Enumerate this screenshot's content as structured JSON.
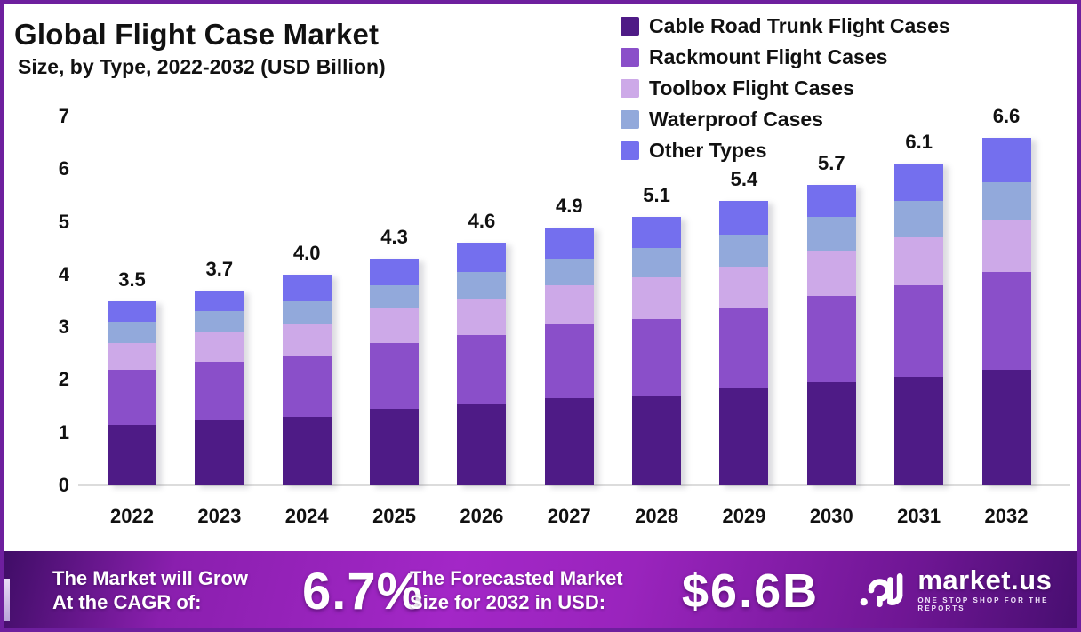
{
  "header": {
    "title": "Global Flight Case Market",
    "subtitle": "Size, by Type, 2022-2032 (USD Billion)"
  },
  "chart_data": {
    "type": "bar",
    "stacked": true,
    "title": "Global Flight Case Market Size, by Type, 2022-2032 (USD Billion)",
    "categories": [
      "2022",
      "2023",
      "2024",
      "2025",
      "2026",
      "2027",
      "2028",
      "2029",
      "2030",
      "2031",
      "2032"
    ],
    "series": [
      {
        "name": "Cable Road Trunk Flight Cases",
        "color": "#4e1b86",
        "values": [
          1.15,
          1.25,
          1.3,
          1.45,
          1.55,
          1.65,
          1.7,
          1.85,
          1.95,
          2.05,
          2.2
        ]
      },
      {
        "name": "Rackmount Flight Cases",
        "color": "#8a4fc9",
        "values": [
          1.05,
          1.1,
          1.15,
          1.25,
          1.3,
          1.4,
          1.45,
          1.5,
          1.65,
          1.75,
          1.85
        ]
      },
      {
        "name": "Toolbox Flight Cases",
        "color": "#cda9e8",
        "values": [
          0.5,
          0.55,
          0.6,
          0.65,
          0.7,
          0.75,
          0.8,
          0.8,
          0.85,
          0.9,
          1.0
        ]
      },
      {
        "name": "Waterproof Cases",
        "color": "#92a9db",
        "values": [
          0.4,
          0.4,
          0.45,
          0.45,
          0.5,
          0.5,
          0.55,
          0.6,
          0.65,
          0.7,
          0.7
        ]
      },
      {
        "name": "Other Types",
        "color": "#746fee",
        "values": [
          0.4,
          0.4,
          0.5,
          0.5,
          0.55,
          0.6,
          0.6,
          0.65,
          0.6,
          0.7,
          0.85
        ]
      }
    ],
    "totals_labels": [
      "3.5",
      "3.7",
      "4.0",
      "4.3",
      "4.6",
      "4.9",
      "5.1",
      "5.4",
      "5.7",
      "6.1",
      "6.6"
    ],
    "xlabel": "",
    "ylabel": "",
    "ylim": [
      0,
      7
    ],
    "yticks": [
      0,
      1,
      2,
      3,
      4,
      5,
      6,
      7
    ],
    "grid": false,
    "legend_position": "top-right"
  },
  "footer": {
    "cagr_label_line1": "The Market will Grow",
    "cagr_label_line2": "At the CAGR of:",
    "cagr_value": "6.7%",
    "forecast_label_line1": "The Forecasted Market",
    "forecast_label_line2": "Size for 2032 in USD:",
    "forecast_value": "$6.6B",
    "brand": {
      "name": "market.us",
      "tagline": "ONE STOP SHOP FOR THE REPORTS",
      "logo_icon": "market-us-swirl-m-icon"
    }
  },
  "colors": {
    "frame_border": "#6e1f9e",
    "banner_gradient_start": "#3f0d66",
    "banner_gradient_mid": "#a327c7",
    "banner_gradient_end": "#470e70",
    "axis_baseline": "#dcdcdc",
    "text": "#111111"
  }
}
